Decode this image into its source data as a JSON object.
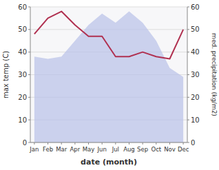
{
  "chart_data": {
    "type": "line",
    "xlabel": "date (month)",
    "ylabel": "max temp (C)",
    "y2label": "med. precipitation (kg/m2)",
    "categories": [
      "Jan",
      "Feb",
      "Mar",
      "Apr",
      "May",
      "Jun",
      "Jul",
      "Aug",
      "Sep",
      "Oct",
      "Nov",
      "Dec"
    ],
    "series": [
      {
        "type": "area",
        "axis": "y2",
        "color": "#b8c0e8",
        "values": [
          38,
          37,
          38,
          45,
          52,
          57,
          53,
          58,
          53,
          45,
          33,
          29
        ]
      },
      {
        "type": "line",
        "color": "#b03050",
        "values": [
          48,
          55,
          58,
          52,
          47,
          47,
          38,
          38,
          40,
          38,
          37,
          50
        ]
      }
    ],
    "ylim": [
      0,
      60
    ],
    "yticks": [
      0,
      10,
      20,
      30,
      40,
      50,
      60
    ],
    "y2lim": [
      0,
      60
    ],
    "y2ticks": [
      0,
      10,
      20,
      30,
      40,
      50,
      60
    ],
    "grid": true
  }
}
